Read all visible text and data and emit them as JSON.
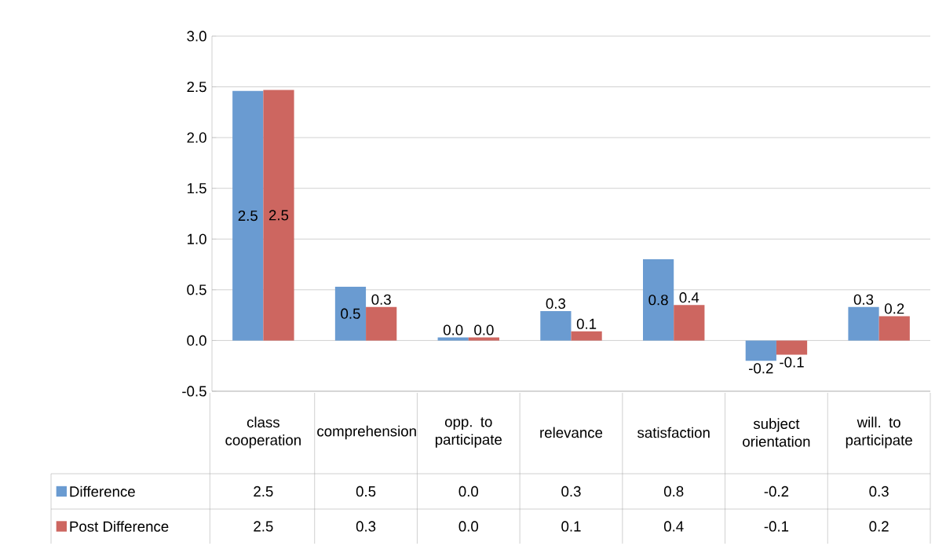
{
  "chart_data": {
    "type": "bar",
    "categories": [
      "class cooperation",
      "comprehension",
      "opp. to participate",
      "relevance",
      "satisfaction",
      "subject orientation",
      "will. to participate"
    ],
    "series": [
      {
        "name": "Difference",
        "color": "#6a9bd1",
        "values": [
          2.46,
          0.53,
          0.03,
          0.29,
          0.8,
          -0.2,
          0.33
        ],
        "value_labels": [
          "2.5",
          "0.5",
          "0.0",
          "0.3",
          "0.8",
          "-0.2",
          "0.3"
        ]
      },
      {
        "name": "Post Difference",
        "color": "#cd6660",
        "values": [
          2.47,
          0.33,
          0.03,
          0.09,
          0.35,
          -0.14,
          0.24
        ],
        "value_labels": [
          "2.5",
          "0.3",
          "0.0",
          "0.1",
          "0.4",
          "-0.1",
          "0.2"
        ]
      }
    ],
    "ylim": [
      -0.5,
      3.0
    ],
    "yticks": [
      {
        "value": -0.5,
        "label": "-0.5"
      },
      {
        "value": 0,
        "label": "0.0"
      },
      {
        "value": 0.5,
        "label": "0.5"
      },
      {
        "value": 1.0,
        "label": "1.0"
      },
      {
        "value": 1.5,
        "label": "1.5"
      },
      {
        "value": 2.0,
        "label": "2.0"
      },
      {
        "value": 2.5,
        "label": "2.5"
      },
      {
        "value": 3.0,
        "label": "3.0"
      }
    ],
    "grid": "y",
    "legend": "bottom"
  }
}
